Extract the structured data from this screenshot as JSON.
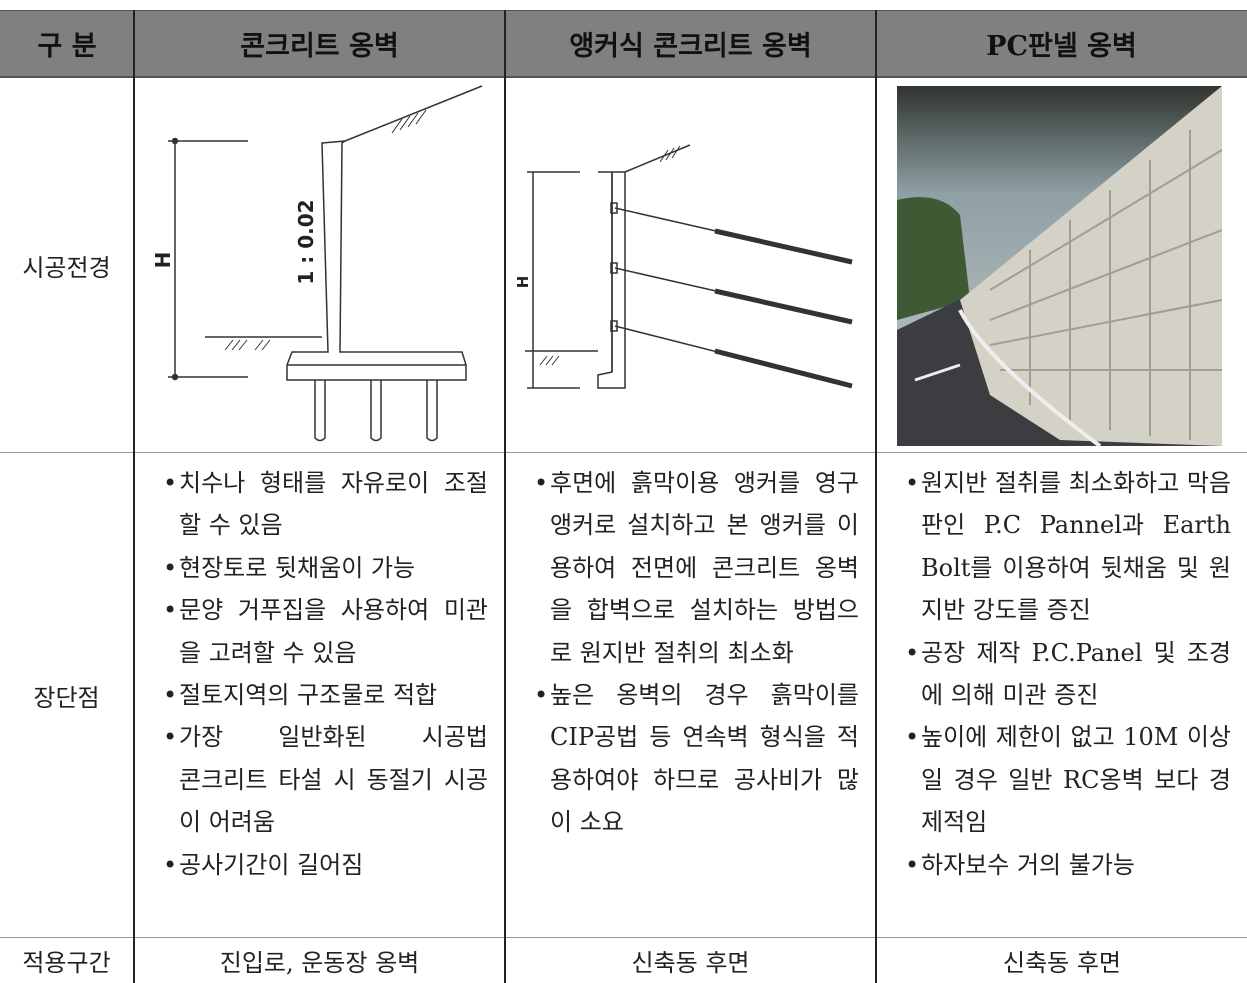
{
  "header": [
    "구 분",
    "콘크리트 옹벽",
    "앵커식 콘크리트 옹벽",
    "PC판넬 옹벽"
  ],
  "rows": [
    {
      "label": "시공전경",
      "diagrams": [
        {
          "height_label": "H",
          "slope_label": "1 : 0.02"
        },
        {
          "height_label": "H"
        }
      ]
    },
    {
      "label": "장단점",
      "cells": [
        [
          [
            "치수나 형태를 자유로이 조절할 수 있음"
          ],
          [
            "현장토로 뒷채움이 가능"
          ],
          [
            "문양 거푸집을 사용하여 미관을 고려할 수 있음"
          ],
          [
            "절토지역의 구조물로 적합"
          ],
          [
            "가장 일반화된 시공법",
            "콘크리트 타설 시 동절기 시공이 어려움"
          ],
          [
            "공사기간이 길어짐"
          ]
        ],
        [
          [
            "후면에 흙막이용 앵커를 영구앵커로 설치하고 본 앵커를 이용하여 전면에 콘크리트 옹벽을 합벽으로 설치하는 방법으로 원지반 절취의 최소화"
          ],
          [
            "높은 옹벽의 경우 흙막이를 CIP공법 등 연속벽 형식을 적용하여야 하므로 공사비가 많이 소요"
          ]
        ],
        [
          [
            "원지반 절취를 최소화하고 막음판인 P.C Pannel과 Earth Bolt를 이용하여 뒷채움 및 원지반 강도를 증진"
          ],
          [
            "공장 제작 P.C.Panel 및 조경에 의해 미관 증진"
          ],
          [
            "높이에 제한이 없고 10M 이상일 경우 일반 RC옹벽 보다 경제적임"
          ],
          [
            "하자보수 거의 불가능"
          ]
        ]
      ]
    },
    {
      "label": "적용구간",
      "cells": [
        "진입로, 운동장 옹벽",
        "신축동 후면",
        "신축동 후면"
      ]
    }
  ]
}
